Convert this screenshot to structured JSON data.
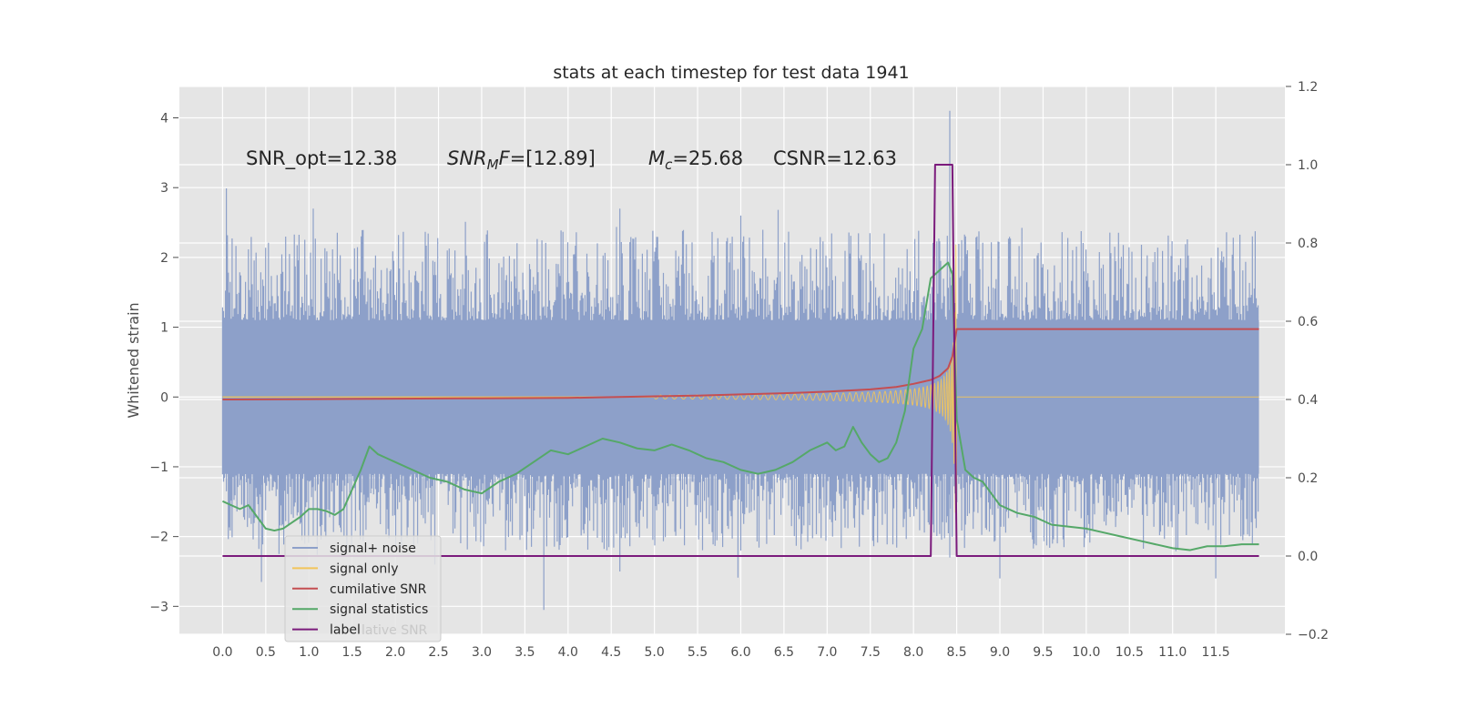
{
  "chart_data": {
    "type": "line",
    "title": "stats at each timestep for test data 1941",
    "xlabel": "",
    "ylabel": "Whitened strain",
    "ylabel_right": "",
    "xlim": [
      -0.5,
      12.3
    ],
    "ylim": [
      -3.4,
      4.45
    ],
    "ylim_right": [
      -0.2,
      1.2
    ],
    "x_ticks": [
      "0.0",
      "0.5",
      "1.0",
      "1.5",
      "2.0",
      "2.5",
      "3.0",
      "3.5",
      "4.0",
      "4.5",
      "5.0",
      "5.5",
      "6.0",
      "6.5",
      "7.0",
      "7.5",
      "8.0",
      "8.5",
      "9.0",
      "9.5",
      "10.0",
      "10.5",
      "11.0",
      "11.5"
    ],
    "y_ticks": [
      -3,
      -2,
      -1,
      0,
      1,
      2,
      3,
      4
    ],
    "y_tick_labels": [
      "−3",
      "−2",
      "−1",
      "0",
      "1",
      "2",
      "3",
      "4"
    ],
    "y_ticks_right": [
      -0.2,
      0.0,
      0.2,
      0.4,
      0.6,
      0.8,
      1.0,
      1.2
    ],
    "y_tick_labels_right": [
      "−0.2",
      "0.0",
      "0.2",
      "0.4",
      "0.6",
      "0.8",
      "1.0",
      "1.2"
    ],
    "grid": true,
    "legend_position": "lower-left",
    "annotations": {
      "snr_opt": "SNR_opt=12.38",
      "snr_mf_main": "SNR",
      "snr_mf_sub": "M",
      "snr_mf_italic": "F",
      "snr_mf_value": "=[12.89]",
      "mc_main": "M",
      "mc_sub": "c",
      "mc_value": "=25.68",
      "csnr": "CSNR=12.63"
    },
    "series": [
      {
        "name": "signal+ noise",
        "axis": "left",
        "color": "#8da0c9",
        "description_kind": "noise",
        "x_range": [
          0.0,
          12.0
        ],
        "envelope": 1.1,
        "outlier_max": 4.1,
        "outlier_min": -3.05
      },
      {
        "name": "signal only",
        "axis": "left",
        "color": "#f2c45a",
        "description_kind": "chirp",
        "x_range": [
          5.0,
          8.5
        ],
        "peak_time": 8.5,
        "peak_amplitude": 2.2
      },
      {
        "name": "cumilative SNR",
        "axis": "right",
        "color": "#c44e52",
        "x": [
          0.0,
          1.0,
          2.0,
          3.0,
          4.0,
          5.0,
          5.5,
          6.0,
          6.5,
          7.0,
          7.5,
          7.8,
          8.0,
          8.2,
          8.3,
          8.4,
          8.45,
          8.5,
          9.0,
          10.0,
          11.0,
          12.0
        ],
        "values": [
          0.4,
          0.401,
          0.402,
          0.403,
          0.404,
          0.408,
          0.41,
          0.413,
          0.416,
          0.42,
          0.426,
          0.432,
          0.44,
          0.45,
          0.46,
          0.48,
          0.51,
          0.58,
          0.58,
          0.58,
          0.58,
          0.58
        ]
      },
      {
        "name": "signal statistics",
        "axis": "right",
        "color": "#55a868",
        "x": [
          0.0,
          0.1,
          0.2,
          0.3,
          0.4,
          0.5,
          0.6,
          0.7,
          0.8,
          0.9,
          1.0,
          1.1,
          1.2,
          1.3,
          1.4,
          1.5,
          1.6,
          1.7,
          1.8,
          1.9,
          2.0,
          2.2,
          2.4,
          2.6,
          2.8,
          3.0,
          3.2,
          3.4,
          3.6,
          3.8,
          4.0,
          4.2,
          4.4,
          4.6,
          4.8,
          5.0,
          5.2,
          5.4,
          5.6,
          5.8,
          6.0,
          6.2,
          6.4,
          6.6,
          6.8,
          7.0,
          7.1,
          7.2,
          7.3,
          7.4,
          7.5,
          7.6,
          7.7,
          7.8,
          7.9,
          8.0,
          8.1,
          8.2,
          8.3,
          8.4,
          8.45,
          8.5,
          8.6,
          8.7,
          8.8,
          8.9,
          9.0,
          9.2,
          9.4,
          9.6,
          9.8,
          10.0,
          10.2,
          10.4,
          10.6,
          10.8,
          11.0,
          11.2,
          11.4,
          11.6,
          11.8,
          12.0
        ],
        "values": [
          0.14,
          0.13,
          0.12,
          0.13,
          0.1,
          0.07,
          0.065,
          0.07,
          0.085,
          0.1,
          0.12,
          0.12,
          0.115,
          0.105,
          0.12,
          0.17,
          0.22,
          0.28,
          0.26,
          0.25,
          0.24,
          0.22,
          0.2,
          0.19,
          0.17,
          0.16,
          0.19,
          0.21,
          0.24,
          0.27,
          0.26,
          0.28,
          0.3,
          0.29,
          0.275,
          0.27,
          0.285,
          0.27,
          0.25,
          0.24,
          0.22,
          0.21,
          0.22,
          0.24,
          0.27,
          0.29,
          0.27,
          0.28,
          0.33,
          0.29,
          0.26,
          0.24,
          0.25,
          0.29,
          0.37,
          0.53,
          0.58,
          0.71,
          0.73,
          0.75,
          0.72,
          0.35,
          0.22,
          0.2,
          0.19,
          0.16,
          0.13,
          0.11,
          0.1,
          0.08,
          0.075,
          0.07,
          0.06,
          0.05,
          0.04,
          0.03,
          0.02,
          0.015,
          0.025,
          0.025,
          0.03,
          0.03
        ]
      },
      {
        "name": "label",
        "axis": "right",
        "color": "#7b1b7c",
        "x": [
          0.0,
          8.2,
          8.25,
          8.45,
          8.5,
          12.0
        ],
        "values": [
          0.0,
          0.0,
          1.0,
          1.0,
          0.0,
          0.0
        ]
      }
    ],
    "legend": [
      "signal+ noise",
      "signal only",
      "cumilative SNR",
      "signal statistics",
      "label"
    ],
    "legend_ghost_text": "lative SNR"
  }
}
